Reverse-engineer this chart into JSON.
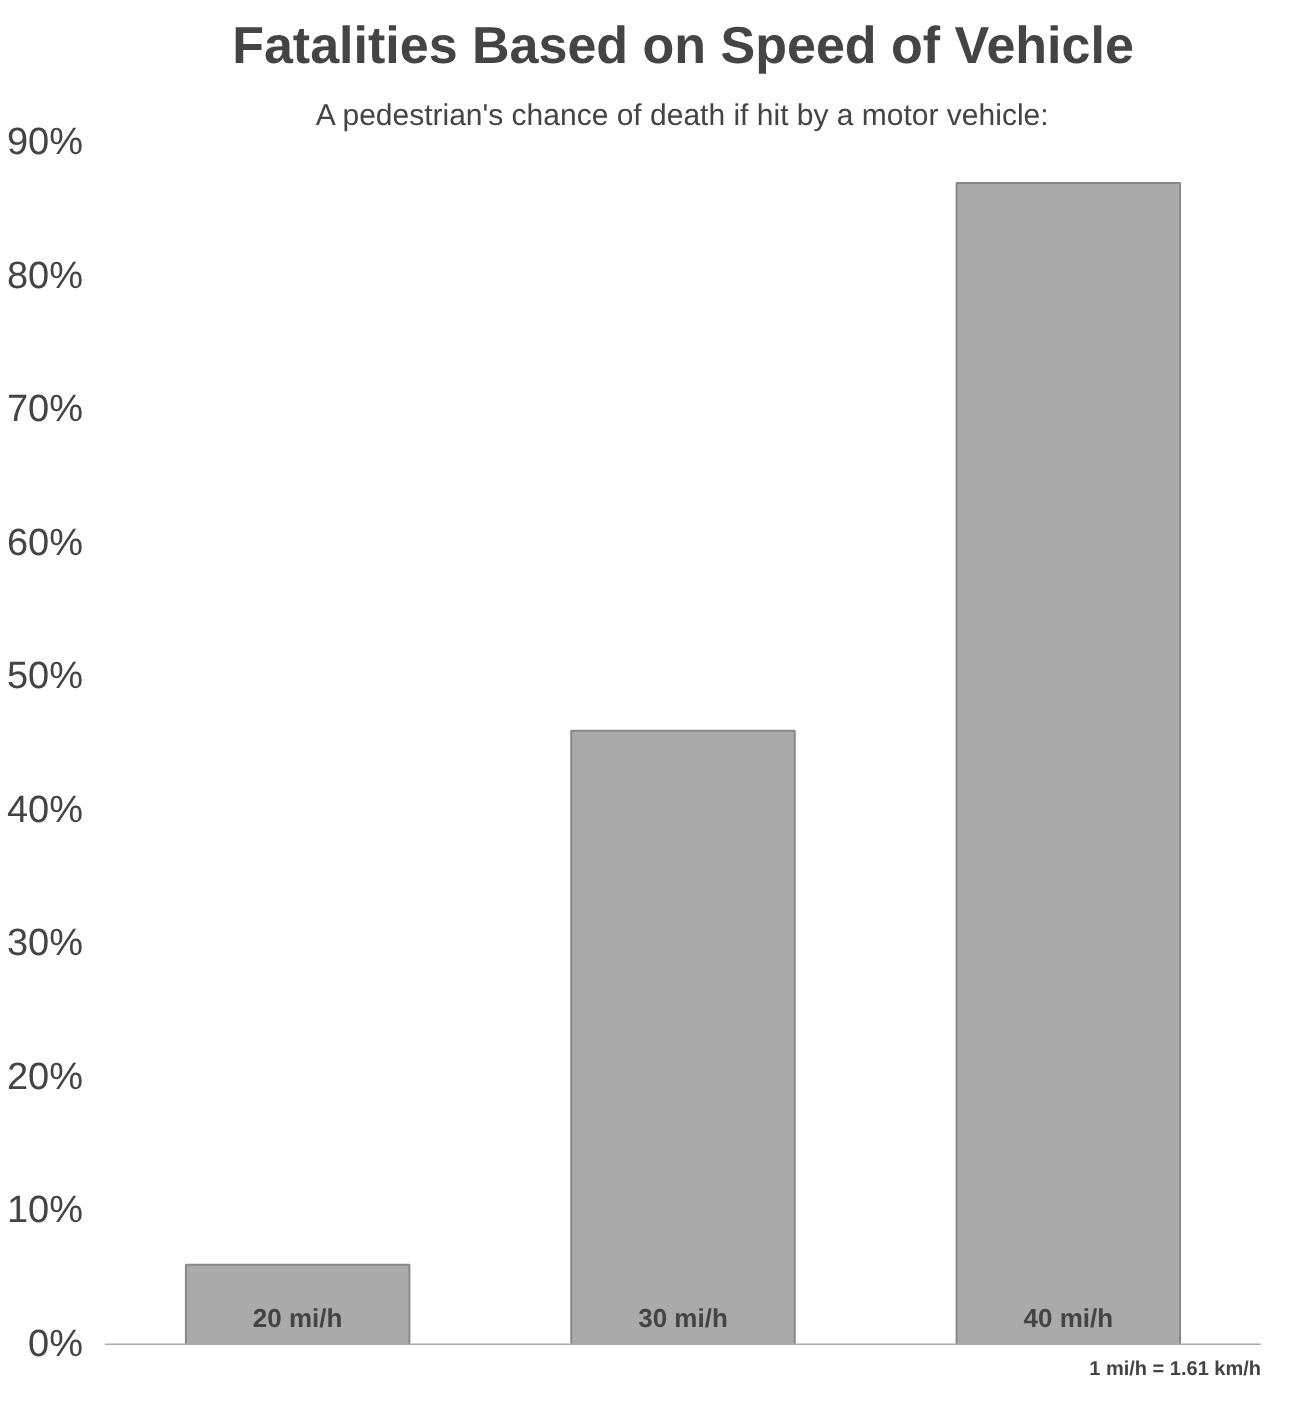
{
  "chart_data": {
    "type": "bar",
    "title": "Fatalities Based on Speed of Vehicle",
    "subtitle": "A pedestrian's chance of death if hit by a motor vehicle:",
    "categories": [
      "20 mi/h",
      "30 mi/h",
      "40 mi/h"
    ],
    "values": [
      6,
      46,
      87
    ],
    "color": "#aaaaaa",
    "ylim": [
      0,
      90
    ],
    "yticks": [
      {
        "value": 0,
        "label": "0%"
      },
      {
        "value": 10,
        "label": "10%"
      },
      {
        "value": 20,
        "label": "20%"
      },
      {
        "value": 30,
        "label": "30%"
      },
      {
        "value": 40,
        "label": "40%"
      },
      {
        "value": 50,
        "label": "50%"
      },
      {
        "value": 60,
        "label": "60%"
      },
      {
        "value": 70,
        "label": "70%"
      },
      {
        "value": 80,
        "label": "80%"
      },
      {
        "value": 90,
        "label": "90%"
      }
    ],
    "grid": false,
    "annotations": [
      "1 mi/h = 1.61 km/h"
    ]
  }
}
